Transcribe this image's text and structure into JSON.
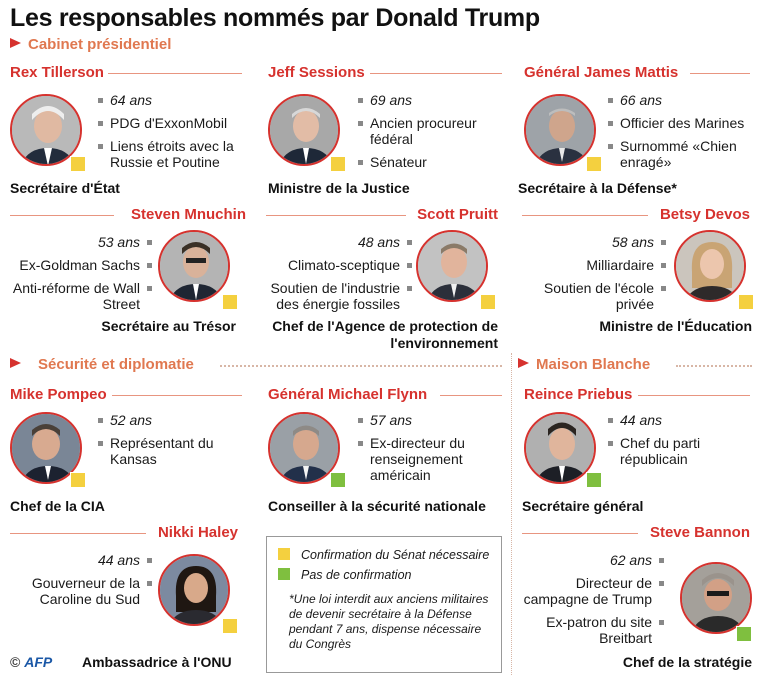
{
  "title": "Les responsables nommés par Donald Trump",
  "sections": {
    "cabinet": "Cabinet présidentiel",
    "securite": "Sécurité et diplomatie",
    "maison": "Maison Blanche"
  },
  "people": [
    {
      "name": "Rex Tillerson",
      "age": "64 ans",
      "facts": [
        "PDG d'ExxonMobil",
        "Liens étroits avec la Russie et Poutine"
      ],
      "role": "Secrétaire d'État",
      "status": "yellow"
    },
    {
      "name": "Jeff Sessions",
      "age": "69 ans",
      "facts": [
        "Ancien procureur fédéral",
        "Sénateur"
      ],
      "role": "Ministre de la Justice",
      "status": "yellow"
    },
    {
      "name": "Général James Mattis",
      "age": "66 ans",
      "facts": [
        "Officier des Marines",
        "Surnommé «Chien enragé»"
      ],
      "role": "Secrétaire à la Défense*",
      "status": "yellow"
    },
    {
      "name": "Steven Mnuchin",
      "age": "53 ans",
      "facts": [
        "Ex-Goldman Sachs",
        "Anti-réforme de Wall Street"
      ],
      "role": "Secrétaire au Trésor",
      "status": "yellow"
    },
    {
      "name": "Scott Pruitt",
      "age": "48 ans",
      "facts": [
        "Climato-sceptique",
        "Soutien de l'industrie des énergie fossiles"
      ],
      "role": "Chef de l'Agence de protection de l'environnement",
      "status": "yellow"
    },
    {
      "name": "Betsy Devos",
      "age": "58 ans",
      "facts": [
        "Milliardaire",
        "Soutien de l'école privée"
      ],
      "role": "Ministre de l'Éducation",
      "status": "yellow"
    },
    {
      "name": "Mike Pompeo",
      "age": "52 ans",
      "facts": [
        "Représentant du Kansas"
      ],
      "role": "Chef de la CIA",
      "status": "yellow"
    },
    {
      "name": "Général Michael Flynn",
      "age": "57 ans",
      "facts": [
        "Ex-directeur du renseignement américain"
      ],
      "role": "Conseiller à la sécurité nationale",
      "status": "green"
    },
    {
      "name": "Reince Priebus",
      "age": "44 ans",
      "facts": [
        "Chef du parti républicain"
      ],
      "role": "Secrétaire général",
      "status": "green"
    },
    {
      "name": "Nikki Haley",
      "age": "44 ans",
      "facts": [
        "Gouverneur de la Caroline du Sud"
      ],
      "role": "Ambassadrice à l'ONU",
      "status": "yellow"
    },
    {
      "name": "Steve Bannon",
      "age": "62 ans",
      "facts": [
        "Directeur de campagne de Trump",
        "Ex-patron du site Breitbart"
      ],
      "role": "Chef de la stratégie",
      "status": "green"
    }
  ],
  "legend": {
    "yellow": "Confirmation du Sénat nécessaire",
    "green": "Pas de confirmation",
    "note": "*Une loi interdit aux anciens militaires de devenir secrétaire à la Défense pendant 7 ans, dispense nécessaire du Congrès"
  },
  "footer": {
    "copyright": "©",
    "agency": "AFP"
  },
  "colors": {
    "accent": "#d6322e",
    "section": "#e07850",
    "confirm": "#f4d03f",
    "noconfirm": "#7fbf3f"
  }
}
